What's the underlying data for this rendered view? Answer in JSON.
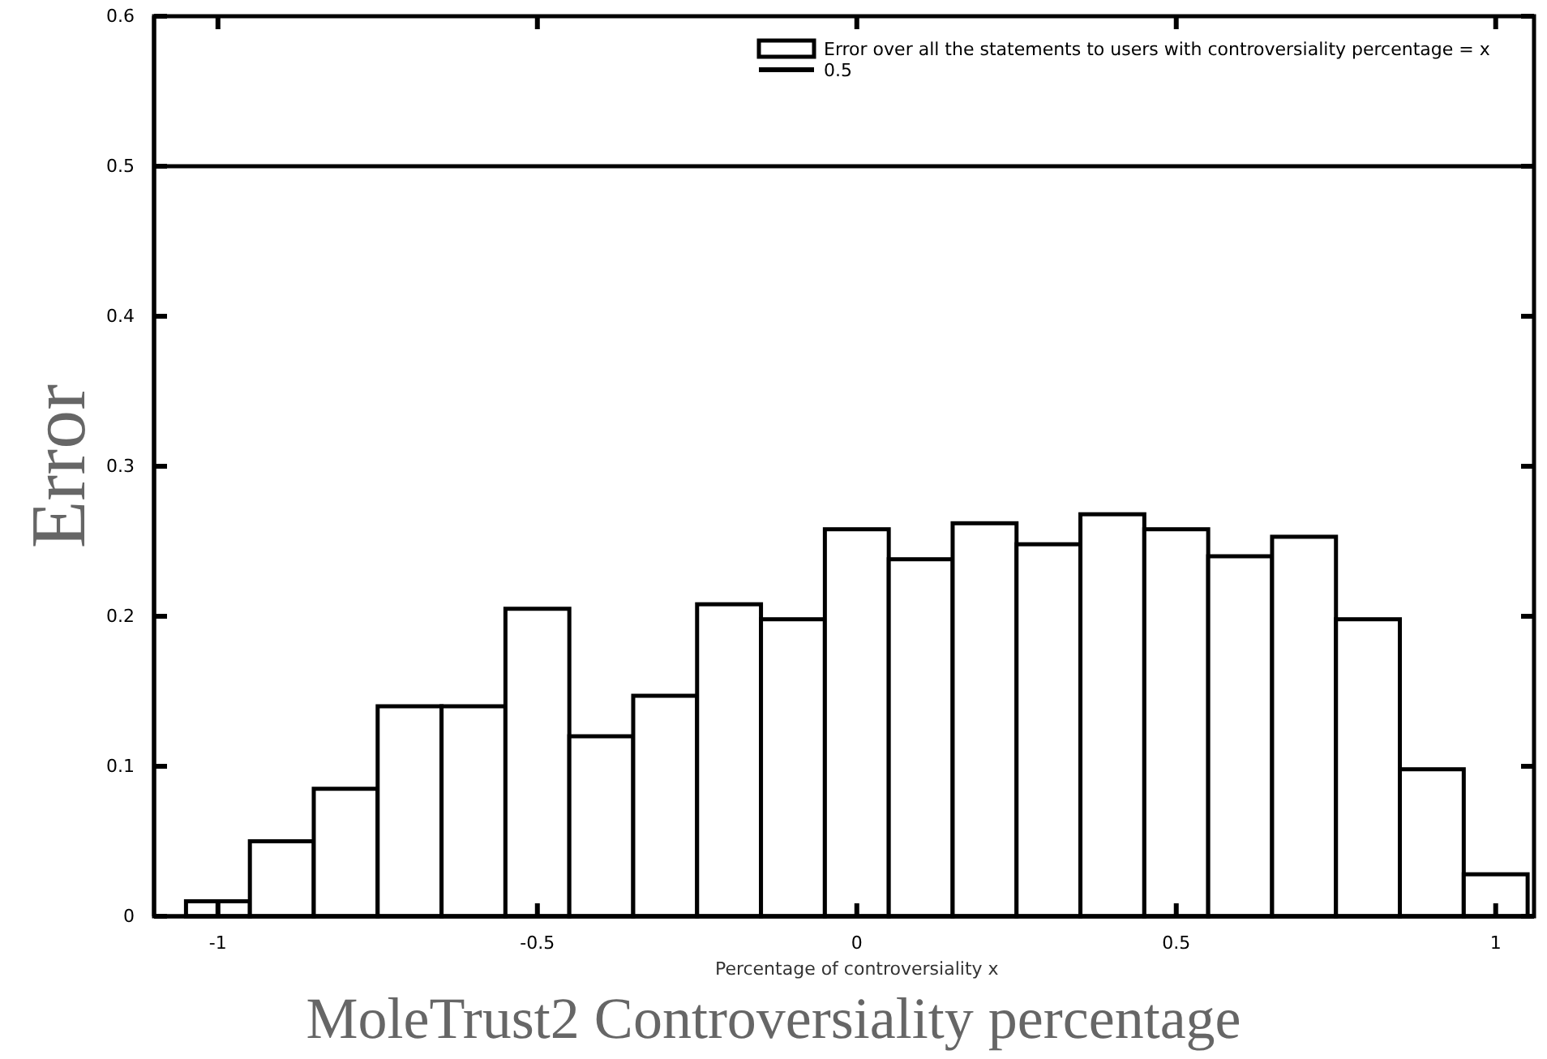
{
  "chart_data": {
    "type": "histogram",
    "xlabel": "MoleTrust2 Controversiality percentage",
    "ylabel": "Error",
    "annotations": [
      "Percentage of controversiality x"
    ],
    "bins": [
      -1.05,
      -0.95,
      -0.85,
      -0.75,
      -0.65,
      -0.55,
      -0.45,
      -0.35,
      -0.25,
      -0.15,
      -0.05,
      0.05,
      0.15,
      0.25,
      0.35,
      0.45,
      0.55,
      0.65,
      0.75,
      0.85,
      0.95,
      1.05
    ],
    "series": [
      {
        "name": "Error over all the statements to users with controversiality percentage = x",
        "color": "#ffffff",
        "values": [
          0.01,
          0.05,
          0.085,
          0.14,
          0.14,
          0.205,
          0.12,
          0.147,
          0.208,
          0.198,
          0.258,
          0.238,
          0.262,
          0.248,
          0.268,
          0.258,
          0.24,
          0.253,
          0.198,
          0.098,
          0.028
        ]
      },
      {
        "name": "0.5",
        "type": "line",
        "color": "#000000",
        "x": [
          -1.1,
          1.06
        ],
        "values": [
          0.5,
          0.5
        ]
      }
    ],
    "xlim": [
      -1.1,
      1.06
    ],
    "xticks": [
      -1,
      -0.5,
      0,
      0.5,
      1
    ],
    "ylim": [
      0,
      0.6
    ],
    "yticks": [
      0,
      0.1,
      0.2,
      0.3,
      0.4,
      0.5,
      0.6
    ],
    "grid": false,
    "legend": "top right"
  }
}
